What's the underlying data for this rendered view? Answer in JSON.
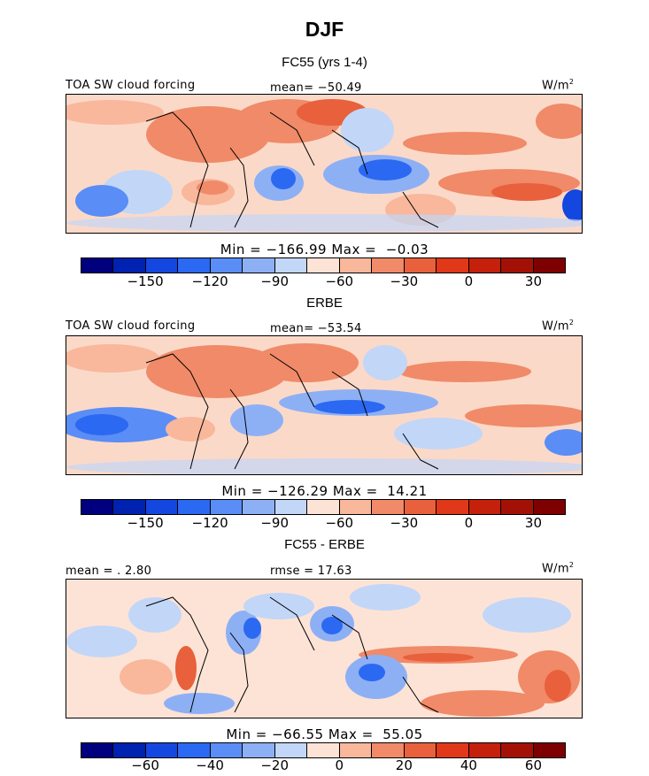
{
  "title": "DJF",
  "colors": {
    "levels": [
      "#00007f",
      "#0022b0",
      "#1446e0",
      "#2c69f2",
      "#5a8df6",
      "#8db0f5",
      "#c2d6f7",
      "#fde3d6",
      "#f9b79c",
      "#f08a68",
      "#e8603c",
      "#e03818",
      "#c4200c",
      "#a31106",
      "#7f0000"
    ]
  },
  "panels": [
    {
      "subtitle": "FC55 (yrs 1-4)",
      "left_label": "TOA SW cloud forcing",
      "center_label": "mean= −50.49",
      "unit": "W/m",
      "unit_sup": "2",
      "stats": "Min = −166.99 Max =  −0.03",
      "ticks": [
        "−150",
        "−120",
        "−90",
        "−60",
        "−30",
        "0",
        "30"
      ]
    },
    {
      "subtitle": "ERBE",
      "left_label": "TOA SW cloud forcing",
      "center_label": "mean= −53.54",
      "unit": "W/m",
      "unit_sup": "2",
      "stats": "Min = −126.29 Max =  14.21",
      "ticks": [
        "−150",
        "−120",
        "−90",
        "−60",
        "−30",
        "0",
        "30"
      ]
    },
    {
      "subtitle": "FC55 - ERBE",
      "left_label": "mean = . 2.80",
      "center_label": "rmse = 17.63",
      "unit": "W/m",
      "unit_sup": "2",
      "stats": "Min = −66.55 Max =  55.05",
      "ticks": [
        "−60",
        "−40",
        "−20",
        "0",
        "20",
        "40",
        "60"
      ]
    }
  ],
  "chart_data": [
    {
      "type": "heatmap",
      "title": "FC55 (yrs 1-4)",
      "variable": "TOA SW cloud forcing",
      "units": "W/m2",
      "mean": -50.49,
      "min": -166.99,
      "max": -0.03,
      "colorbar_ticks": [
        -150,
        -120,
        -90,
        -60,
        -30,
        0,
        30
      ]
    },
    {
      "type": "heatmap",
      "title": "ERBE",
      "variable": "TOA SW cloud forcing",
      "units": "W/m2",
      "mean": -53.54,
      "min": -126.29,
      "max": 14.21,
      "colorbar_ticks": [
        -150,
        -120,
        -90,
        -60,
        -30,
        0,
        30
      ]
    },
    {
      "type": "heatmap",
      "title": "FC55 - ERBE",
      "units": "W/m2",
      "mean": 2.8,
      "rmse": 17.63,
      "min": -66.55,
      "max": 55.05,
      "colorbar_ticks": [
        -60,
        -40,
        -20,
        0,
        20,
        40,
        60
      ]
    }
  ]
}
